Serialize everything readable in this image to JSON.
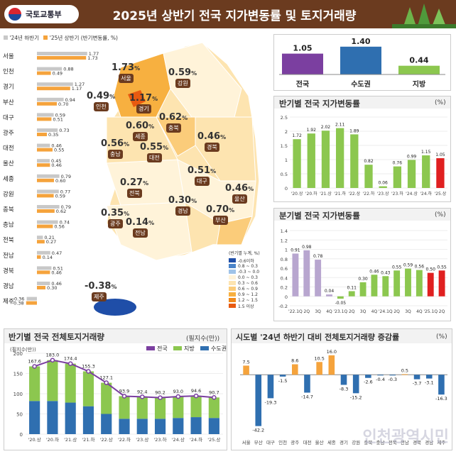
{
  "header": {
    "org": "국토교통부",
    "title": "2025년 상반기 전국 지가변동률 및 토지거래량"
  },
  "colors": {
    "h24": "#c8c8c8",
    "h25": "#f5a33c",
    "capital": "#2f6fb0",
    "local": "#8cc74f",
    "national": "#7b3fa0",
    "red": "#e02020",
    "purple": "#b8a6cf"
  },
  "legend_small": {
    "h24": "'24년 하반기",
    "h25": "'25년 상반기 (반기변동률, %)"
  },
  "chart_data": [
    {
      "type": "bar",
      "title": "",
      "categories": [
        "서울",
        "인천",
        "경기",
        "부산",
        "대구",
        "광주",
        "대전",
        "울산",
        "세종",
        "강원",
        "충북",
        "충남",
        "전북",
        "전남",
        "경북",
        "경남",
        "제주"
      ],
      "series": [
        {
          "name": "'24년 하반기",
          "values": [
            1.77,
            0.88,
            1.27,
            0.94,
            0.59,
            0.73,
            0.46,
            0.45,
            0.79,
            0.77,
            0.79,
            0.74,
            0.21,
            0.47,
            0.51,
            0.46,
            -0.36
          ]
        },
        {
          "name": "'25년 상반기 (반기변동률, %)",
          "values": [
            1.73,
            0.49,
            1.17,
            0.7,
            0.51,
            0.35,
            0.55,
            0.46,
            0.6,
            0.59,
            0.62,
            0.56,
            0.27,
            0.14,
            0.46,
            0.3,
            -0.38
          ]
        }
      ]
    },
    {
      "type": "bar",
      "title": "",
      "categories": [
        "전국",
        "수도권",
        "지방"
      ],
      "values": [
        1.05,
        1.4,
        0.44
      ]
    },
    {
      "type": "bar",
      "title": "반기별 전국 지가변동률",
      "unit": "(%)",
      "categories": [
        "'20.상",
        "'20.하",
        "'21.상",
        "'21.하",
        "'22.상",
        "'22.하",
        "'23.상",
        "'23.하",
        "'24.상",
        "'24.하",
        "'25.상"
      ],
      "values": [
        1.72,
        1.92,
        2.02,
        2.11,
        1.89,
        0.82,
        0.06,
        0.76,
        0.99,
        1.15,
        1.05
      ],
      "ylim": [
        0,
        2.5
      ]
    },
    {
      "type": "bar",
      "title": "분기별 전국 지가변동률",
      "unit": "(%)",
      "categories": [
        "'22.1Q",
        "2Q",
        "3Q",
        "4Q",
        "'23.1Q",
        "2Q",
        "3Q",
        "4Q",
        "'24.1Q",
        "2Q",
        "3Q",
        "4Q",
        "'25.1Q",
        "2Q"
      ],
      "values": [
        0.91,
        0.98,
        0.78,
        0.04,
        -0.05,
        0.11,
        0.3,
        0.46,
        0.43,
        0.55,
        0.59,
        0.56,
        0.5,
        0.55
      ],
      "ylim": [
        -0.2,
        1.4
      ]
    },
    {
      "type": "bar",
      "title": "반기별 전국 전체토지거래량",
      "unit": "(필지수(만))",
      "subunit": "(필지수(만))",
      "categories": [
        "'20.상",
        "'20.하",
        "'21.상",
        "'21.하",
        "'22.상",
        "'22.하",
        "'23.상",
        "'23.하",
        "'24.상",
        "'24.하",
        "'25.상"
      ],
      "series": [
        {
          "name": "수도권",
          "values": [
            82,
            82,
            78,
            69,
            50,
            38,
            38,
            38,
            40,
            42,
            40
          ]
        },
        {
          "name": "지방",
          "values": [
            85.6,
            101,
            96.4,
            86.3,
            77.1,
            55.9,
            54.4,
            52.2,
            53,
            52.6,
            50.7
          ]
        },
        {
          "name": "전국",
          "values": [
            167.6,
            183.0,
            174.4,
            155.3,
            127.1,
            93.9,
            92.4,
            90.2,
            93.0,
            94.6,
            90.7
          ]
        }
      ],
      "ylim": [
        0,
        200
      ]
    },
    {
      "type": "bar",
      "title": "시도별 '24년 하반기 대비 전체토지거래량 증감률",
      "unit": "(%)",
      "categories": [
        "서울",
        "부산",
        "대구",
        "인천",
        "광주",
        "대전",
        "울산",
        "세종",
        "경기",
        "강원",
        "충북",
        "충남",
        "전북",
        "전남",
        "경북",
        "경남",
        "제주"
      ],
      "values": [
        7.5,
        -42.2,
        -19.3,
        -1.5,
        8.6,
        -14.7,
        10.5,
        16.0,
        -8.3,
        -15.2,
        -2.6,
        -0.4,
        -0.3,
        0.5,
        -3.7,
        -3.1,
        -16.3
      ]
    }
  ],
  "map": {
    "labels": [
      {
        "name": "서울",
        "v": "1.73"
      },
      {
        "name": "인천",
        "v": "0.49"
      },
      {
        "name": "경기",
        "v": "1.17"
      },
      {
        "name": "강원",
        "v": "0.59"
      },
      {
        "name": "충북",
        "v": "0.62"
      },
      {
        "name": "세종",
        "v": "0.60"
      },
      {
        "name": "충남",
        "v": "0.56"
      },
      {
        "name": "대전",
        "v": "0.55"
      },
      {
        "name": "경북",
        "v": "0.46"
      },
      {
        "name": "대구",
        "v": "0.51"
      },
      {
        "name": "전북",
        "v": "0.27"
      },
      {
        "name": "울산",
        "v": "0.46"
      },
      {
        "name": "경남",
        "v": "0.30"
      },
      {
        "name": "부산",
        "v": "0.70"
      },
      {
        "name": "광주",
        "v": "0.35"
      },
      {
        "name": "전남",
        "v": "0.14"
      },
      {
        "name": "제주",
        "v": "-0.38"
      }
    ],
    "legend_title": "(반기별 누계, %)",
    "legend": [
      "-0.6이하",
      "0.8 ~ 0.3",
      "-0.3 ~ 0.0",
      "0.0 ~ 0.3",
      "0.3 ~ 0.6",
      "0.6 ~ 0.9",
      "0.9 ~ 1.2",
      "1.2 ~ 1.5",
      "1.5 이상"
    ],
    "legend_colors": [
      "#1f4ea8",
      "#4b84c9",
      "#9fc3e8",
      "#fff3d9",
      "#fde4b0",
      "#fbcc7a",
      "#f7b040",
      "#f08a1c",
      "#e85a10"
    ]
  },
  "trade_legend": {
    "a": "전국",
    "b": "지방",
    "c": "수도권"
  },
  "pct": "%",
  "watermark": "인천광역시민"
}
